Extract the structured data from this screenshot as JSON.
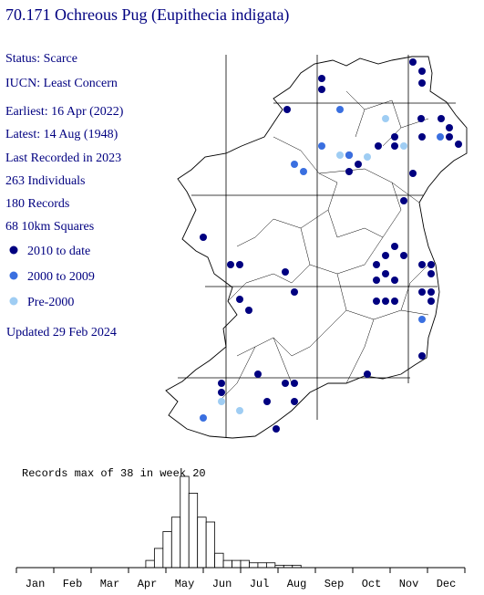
{
  "header": {
    "title": "70.171 Ochreous Pug (Eupithecia indigata)"
  },
  "info": [
    "Status: Scarce",
    "IUCN: Least Concern",
    "Earliest: 16 Apr (2022)",
    "Latest: 14 Aug (1948)",
    "Last Recorded in 2023",
    "263 Individuals",
    "180 Records",
    "68 10km Squares"
  ],
  "legend": [
    {
      "name": "2010 to date",
      "color": "#000080"
    },
    {
      "name": "2000 to 2009",
      "color": "#3a6fe0"
    },
    {
      "name": "Pre-2000",
      "color": "#9fcdf3"
    }
  ],
  "updated": "Updated 29 Feb 2024",
  "chart_data": {
    "type": "bar",
    "title": "Records max of 38 in week 20",
    "months": [
      "Jan",
      "Feb",
      "Mar",
      "Apr",
      "May",
      "Jun",
      "Jul",
      "Aug",
      "Sep",
      "Oct",
      "Nov",
      "Dec"
    ],
    "values": [
      0,
      0,
      0,
      0,
      0,
      0,
      0,
      0,
      0,
      0,
      0,
      0,
      0,
      0,
      0,
      3,
      8,
      15,
      21,
      38,
      31,
      21,
      19,
      6,
      3,
      3,
      3,
      2,
      2,
      2,
      1,
      1,
      1,
      0,
      0,
      0,
      0,
      0,
      0,
      0,
      0,
      0,
      0,
      0,
      0,
      0,
      0,
      0,
      0,
      0,
      0,
      0
    ],
    "ylim": [
      0,
      38
    ]
  }
}
